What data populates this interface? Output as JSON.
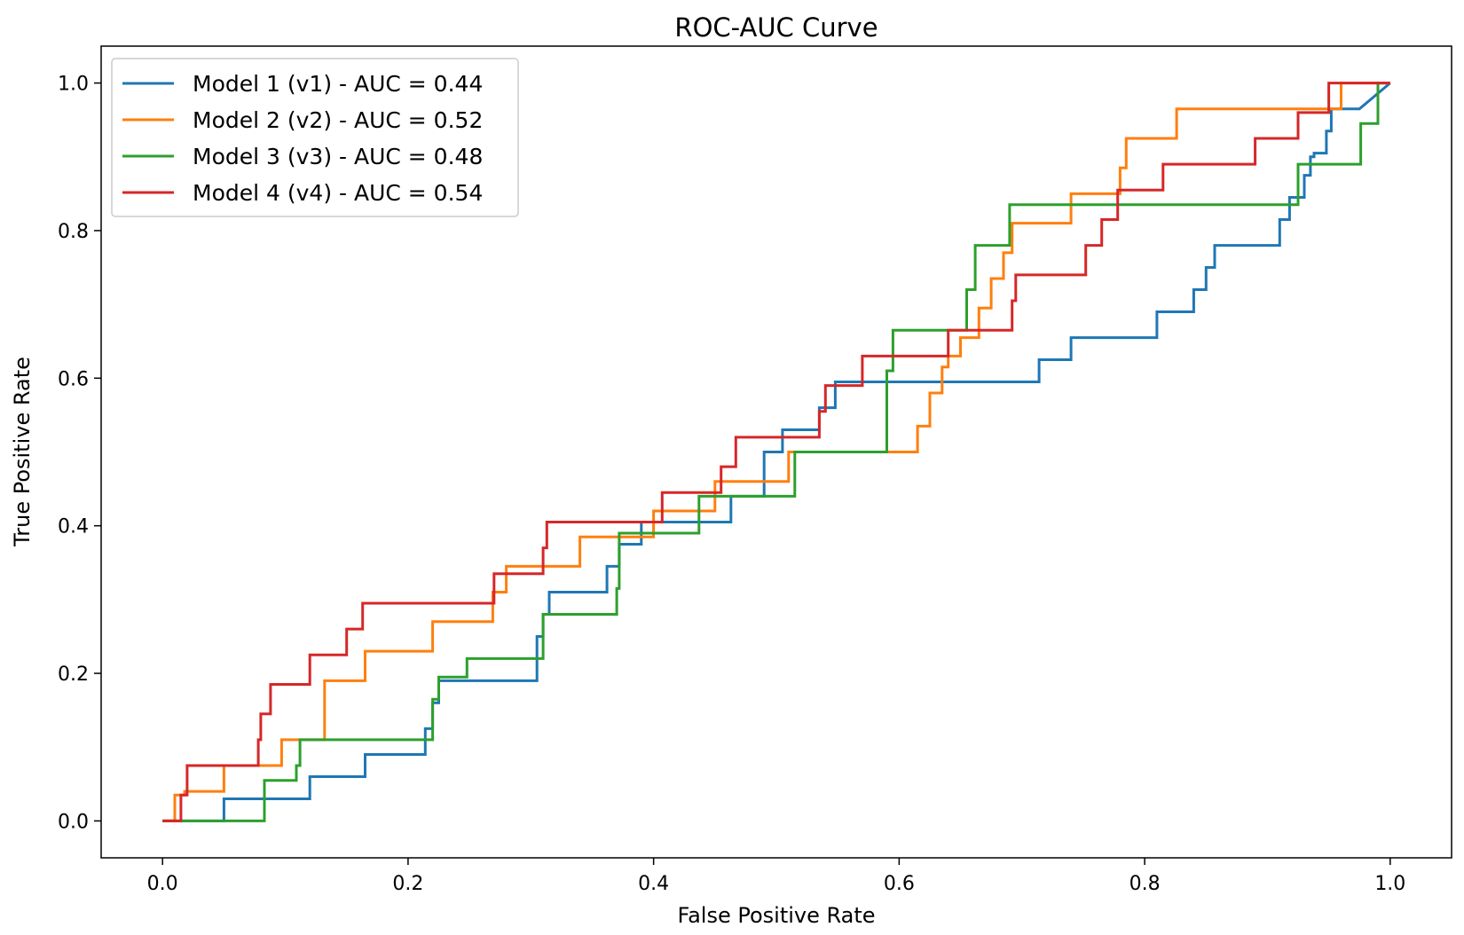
{
  "chart_data": {
    "type": "line",
    "title": "ROC-AUC Curve",
    "xlabel": "False Positive Rate",
    "ylabel": "True Positive Rate",
    "xlim": [
      -0.05,
      1.05
    ],
    "ylim": [
      -0.05,
      1.05
    ],
    "xticks": [
      0.0,
      0.2,
      0.4,
      0.6,
      0.8,
      1.0
    ],
    "yticks": [
      0.0,
      0.2,
      0.4,
      0.6,
      0.8,
      1.0
    ],
    "xtick_labels": [
      "0.0",
      "0.2",
      "0.4",
      "0.6",
      "0.8",
      "1.0"
    ],
    "ytick_labels": [
      "0.0",
      "0.2",
      "0.4",
      "0.6",
      "0.8",
      "1.0"
    ],
    "grid": false,
    "legend_position": "top-left",
    "series": [
      {
        "name": "Model 1 (v1) - AUC = 0.44",
        "color": "#1f77b4",
        "points": [
          [
            0,
            0
          ],
          [
            0.05,
            0
          ],
          [
            0.05,
            0.03
          ],
          [
            0.12,
            0.03
          ],
          [
            0.12,
            0.06
          ],
          [
            0.165,
            0.06
          ],
          [
            0.165,
            0.09
          ],
          [
            0.214,
            0.09
          ],
          [
            0.214,
            0.125
          ],
          [
            0.22,
            0.125
          ],
          [
            0.22,
            0.16
          ],
          [
            0.225,
            0.16
          ],
          [
            0.225,
            0.19
          ],
          [
            0.305,
            0.19
          ],
          [
            0.305,
            0.25
          ],
          [
            0.31,
            0.25
          ],
          [
            0.31,
            0.28
          ],
          [
            0.315,
            0.28
          ],
          [
            0.315,
            0.31
          ],
          [
            0.362,
            0.31
          ],
          [
            0.362,
            0.345
          ],
          [
            0.372,
            0.345
          ],
          [
            0.372,
            0.375
          ],
          [
            0.39,
            0.375
          ],
          [
            0.39,
            0.405
          ],
          [
            0.463,
            0.405
          ],
          [
            0.463,
            0.44
          ],
          [
            0.49,
            0.44
          ],
          [
            0.49,
            0.5
          ],
          [
            0.505,
            0.5
          ],
          [
            0.505,
            0.53
          ],
          [
            0.535,
            0.53
          ],
          [
            0.535,
            0.56
          ],
          [
            0.548,
            0.56
          ],
          [
            0.548,
            0.595
          ],
          [
            0.714,
            0.595
          ],
          [
            0.714,
            0.625
          ],
          [
            0.74,
            0.625
          ],
          [
            0.74,
            0.655
          ],
          [
            0.81,
            0.655
          ],
          [
            0.81,
            0.69
          ],
          [
            0.84,
            0.69
          ],
          [
            0.84,
            0.72
          ],
          [
            0.85,
            0.72
          ],
          [
            0.85,
            0.75
          ],
          [
            0.857,
            0.75
          ],
          [
            0.857,
            0.78
          ],
          [
            0.91,
            0.78
          ],
          [
            0.91,
            0.815
          ],
          [
            0.918,
            0.815
          ],
          [
            0.918,
            0.845
          ],
          [
            0.93,
            0.845
          ],
          [
            0.93,
            0.875
          ],
          [
            0.935,
            0.875
          ],
          [
            0.935,
            0.9
          ],
          [
            0.938,
            0.9
          ],
          [
            0.938,
            0.905
          ],
          [
            0.948,
            0.905
          ],
          [
            0.948,
            0.935
          ],
          [
            0.952,
            0.935
          ],
          [
            0.952,
            0.965
          ],
          [
            0.975,
            0.965
          ],
          [
            1.0,
            1.0
          ]
        ]
      },
      {
        "name": "Model 2 (v2) - AUC = 0.52",
        "color": "#ff7f0e",
        "points": [
          [
            0,
            0
          ],
          [
            0.01,
            0
          ],
          [
            0.01,
            0.035
          ],
          [
            0.018,
            0.035
          ],
          [
            0.018,
            0.04
          ],
          [
            0.05,
            0.04
          ],
          [
            0.05,
            0.075
          ],
          [
            0.097,
            0.075
          ],
          [
            0.097,
            0.11
          ],
          [
            0.132,
            0.11
          ],
          [
            0.132,
            0.19
          ],
          [
            0.165,
            0.19
          ],
          [
            0.165,
            0.23
          ],
          [
            0.22,
            0.23
          ],
          [
            0.22,
            0.27
          ],
          [
            0.269,
            0.27
          ],
          [
            0.269,
            0.31
          ],
          [
            0.28,
            0.31
          ],
          [
            0.28,
            0.345
          ],
          [
            0.34,
            0.345
          ],
          [
            0.34,
            0.385
          ],
          [
            0.4,
            0.385
          ],
          [
            0.4,
            0.42
          ],
          [
            0.45,
            0.42
          ],
          [
            0.45,
            0.46
          ],
          [
            0.51,
            0.46
          ],
          [
            0.51,
            0.5
          ],
          [
            0.615,
            0.5
          ],
          [
            0.615,
            0.535
          ],
          [
            0.625,
            0.535
          ],
          [
            0.625,
            0.58
          ],
          [
            0.635,
            0.58
          ],
          [
            0.635,
            0.615
          ],
          [
            0.64,
            0.615
          ],
          [
            0.64,
            0.63
          ],
          [
            0.65,
            0.63
          ],
          [
            0.65,
            0.655
          ],
          [
            0.665,
            0.655
          ],
          [
            0.665,
            0.695
          ],
          [
            0.675,
            0.695
          ],
          [
            0.675,
            0.735
          ],
          [
            0.685,
            0.735
          ],
          [
            0.685,
            0.77
          ],
          [
            0.692,
            0.77
          ],
          [
            0.692,
            0.81
          ],
          [
            0.74,
            0.81
          ],
          [
            0.74,
            0.85
          ],
          [
            0.78,
            0.85
          ],
          [
            0.78,
            0.885
          ],
          [
            0.785,
            0.885
          ],
          [
            0.785,
            0.925
          ],
          [
            0.826,
            0.925
          ],
          [
            0.826,
            0.965
          ],
          [
            0.96,
            0.965
          ],
          [
            0.96,
            1.0
          ],
          [
            1.0,
            1.0
          ]
        ]
      },
      {
        "name": "Model 3 (v3) - AUC = 0.48",
        "color": "#2ca02c",
        "points": [
          [
            0,
            0
          ],
          [
            0.083,
            0
          ],
          [
            0.083,
            0.055
          ],
          [
            0.109,
            0.055
          ],
          [
            0.109,
            0.075
          ],
          [
            0.112,
            0.075
          ],
          [
            0.112,
            0.11
          ],
          [
            0.22,
            0.11
          ],
          [
            0.22,
            0.165
          ],
          [
            0.225,
            0.165
          ],
          [
            0.225,
            0.195
          ],
          [
            0.248,
            0.195
          ],
          [
            0.248,
            0.22
          ],
          [
            0.31,
            0.22
          ],
          [
            0.31,
            0.28
          ],
          [
            0.37,
            0.28
          ],
          [
            0.37,
            0.315
          ],
          [
            0.372,
            0.315
          ],
          [
            0.372,
            0.39
          ],
          [
            0.437,
            0.39
          ],
          [
            0.437,
            0.44
          ],
          [
            0.515,
            0.44
          ],
          [
            0.515,
            0.5
          ],
          [
            0.59,
            0.5
          ],
          [
            0.59,
            0.61
          ],
          [
            0.595,
            0.61
          ],
          [
            0.595,
            0.665
          ],
          [
            0.655,
            0.665
          ],
          [
            0.655,
            0.72
          ],
          [
            0.662,
            0.72
          ],
          [
            0.662,
            0.78
          ],
          [
            0.69,
            0.78
          ],
          [
            0.69,
            0.835
          ],
          [
            0.925,
            0.835
          ],
          [
            0.925,
            0.89
          ],
          [
            0.976,
            0.89
          ],
          [
            0.976,
            0.945
          ],
          [
            0.99,
            0.945
          ],
          [
            0.99,
            1.0
          ],
          [
            1.0,
            1.0
          ]
        ]
      },
      {
        "name": "Model 4 (v4) - AUC = 0.54",
        "color": "#d62728",
        "points": [
          [
            0,
            0
          ],
          [
            0.015,
            0
          ],
          [
            0.015,
            0.035
          ],
          [
            0.02,
            0.035
          ],
          [
            0.02,
            0.075
          ],
          [
            0.078,
            0.075
          ],
          [
            0.078,
            0.11
          ],
          [
            0.08,
            0.11
          ],
          [
            0.08,
            0.145
          ],
          [
            0.088,
            0.145
          ],
          [
            0.088,
            0.185
          ],
          [
            0.12,
            0.185
          ],
          [
            0.12,
            0.225
          ],
          [
            0.15,
            0.225
          ],
          [
            0.15,
            0.26
          ],
          [
            0.163,
            0.26
          ],
          [
            0.163,
            0.295
          ],
          [
            0.27,
            0.295
          ],
          [
            0.27,
            0.335
          ],
          [
            0.31,
            0.335
          ],
          [
            0.31,
            0.37
          ],
          [
            0.313,
            0.37
          ],
          [
            0.313,
            0.405
          ],
          [
            0.407,
            0.405
          ],
          [
            0.407,
            0.445
          ],
          [
            0.455,
            0.445
          ],
          [
            0.455,
            0.48
          ],
          [
            0.467,
            0.48
          ],
          [
            0.467,
            0.52
          ],
          [
            0.535,
            0.52
          ],
          [
            0.535,
            0.555
          ],
          [
            0.54,
            0.555
          ],
          [
            0.54,
            0.59
          ],
          [
            0.57,
            0.59
          ],
          [
            0.57,
            0.63
          ],
          [
            0.64,
            0.63
          ],
          [
            0.64,
            0.665
          ],
          [
            0.692,
            0.665
          ],
          [
            0.692,
            0.705
          ],
          [
            0.695,
            0.705
          ],
          [
            0.695,
            0.74
          ],
          [
            0.752,
            0.74
          ],
          [
            0.752,
            0.78
          ],
          [
            0.765,
            0.78
          ],
          [
            0.765,
            0.815
          ],
          [
            0.778,
            0.815
          ],
          [
            0.778,
            0.855
          ],
          [
            0.815,
            0.855
          ],
          [
            0.815,
            0.89
          ],
          [
            0.89,
            0.89
          ],
          [
            0.89,
            0.925
          ],
          [
            0.925,
            0.925
          ],
          [
            0.925,
            0.96
          ],
          [
            0.95,
            0.96
          ],
          [
            0.95,
            1.0
          ],
          [
            1.0,
            1.0
          ]
        ]
      }
    ]
  }
}
